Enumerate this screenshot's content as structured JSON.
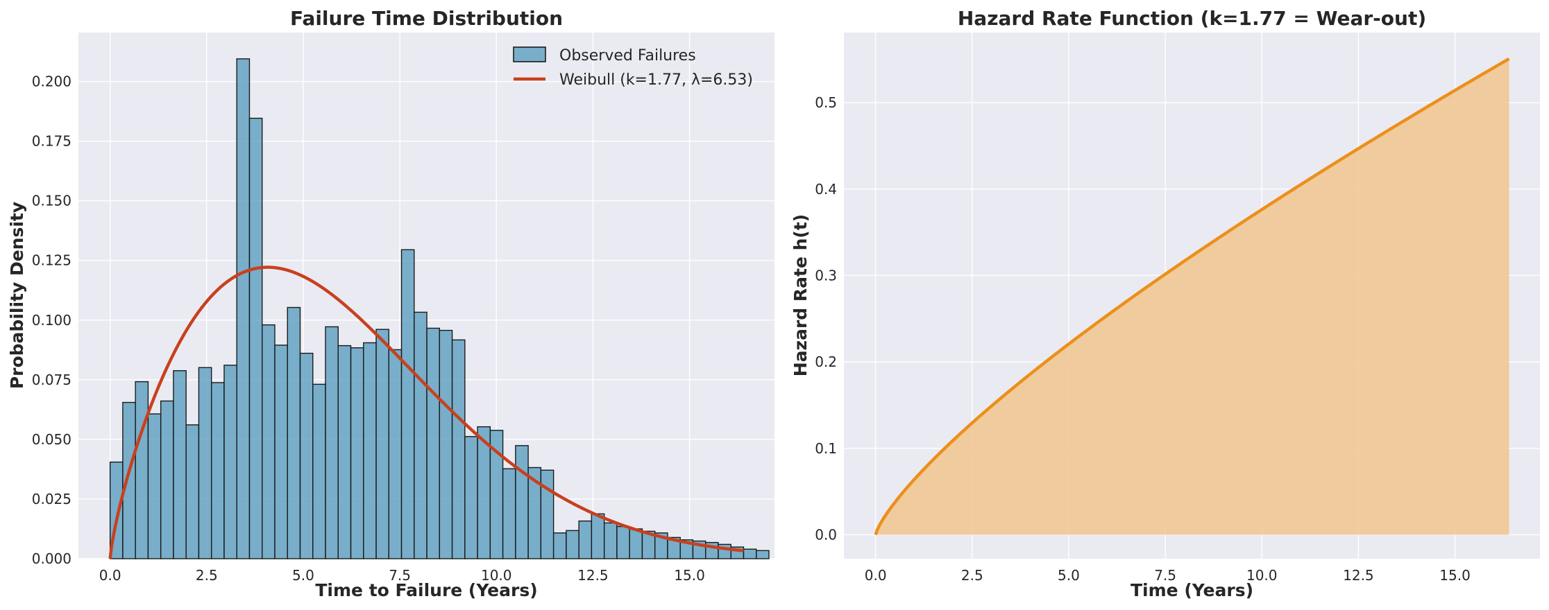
{
  "chart_data": [
    {
      "type": "bar",
      "title": "Failure Time Distribution",
      "xlabel": "Time to Failure (Years)",
      "ylabel": "Probability Density",
      "xlim": [
        -0.82,
        17.2
      ],
      "ylim": [
        0,
        0.2205
      ],
      "xticks": [
        0.0,
        2.5,
        5.0,
        7.5,
        10.0,
        12.5,
        15.0
      ],
      "xtick_labels": [
        "0.0",
        "2.5",
        "5.0",
        "7.5",
        "10.0",
        "12.5",
        "15.0"
      ],
      "yticks": [
        0.0,
        0.025,
        0.05,
        0.075,
        0.1,
        0.125,
        0.15,
        0.175,
        0.2
      ],
      "ytick_labels": [
        "0.000",
        "0.025",
        "0.050",
        "0.075",
        "0.100",
        "0.125",
        "0.150",
        "0.175",
        "0.200"
      ],
      "grid": true,
      "legend_position": "top-right",
      "histogram": {
        "name": "Observed Failures",
        "color": "#5b9fbf",
        "bin_start": 0.0,
        "bin_width": 0.328,
        "values": [
          0.0405,
          0.0655,
          0.0742,
          0.0607,
          0.0661,
          0.0788,
          0.0561,
          0.0801,
          0.0738,
          0.0811,
          0.2095,
          0.1846,
          0.098,
          0.0895,
          0.1053,
          0.0861,
          0.0731,
          0.0972,
          0.0893,
          0.0884,
          0.0905,
          0.0961,
          0.0876,
          0.1295,
          0.1033,
          0.0966,
          0.0957,
          0.0917,
          0.0512,
          0.0553,
          0.0538,
          0.0377,
          0.0474,
          0.0382,
          0.0371,
          0.0108,
          0.0118,
          0.0158,
          0.0188,
          0.015,
          0.0135,
          0.0125,
          0.0115,
          0.0108,
          0.0089,
          0.0079,
          0.0074,
          0.0068,
          0.006,
          0.0049,
          0.004,
          0.0034
        ]
      },
      "curve": {
        "name": "Weibull (k=1.77, λ=6.53)",
        "color": "#c8401e",
        "k": 1.77,
        "lambda": 6.53,
        "x_range": [
          0.0,
          16.4
        ]
      }
    },
    {
      "type": "area",
      "title": "Hazard Rate Function (k=1.77 = Wear-out)",
      "xlabel": "Time (Years)",
      "ylabel": "Hazard Rate h(t)",
      "xlim": [
        -0.82,
        17.2
      ],
      "ylim": [
        -0.0277,
        0.5811
      ],
      "xticks": [
        0.0,
        2.5,
        5.0,
        7.5,
        10.0,
        12.5,
        15.0
      ],
      "xtick_labels": [
        "0.0",
        "2.5",
        "5.0",
        "7.5",
        "10.0",
        "12.5",
        "15.0"
      ],
      "yticks": [
        0.0,
        0.1,
        0.2,
        0.3,
        0.4,
        0.5
      ],
      "ytick_labels": [
        "0.0",
        "0.1",
        "0.2",
        "0.3",
        "0.4",
        "0.5"
      ],
      "grid": true,
      "series": {
        "color": "#ec8f1a",
        "fill_color": "#f0c68e",
        "k": 1.77,
        "lambda": 6.53,
        "x_range": [
          0.0,
          16.4
        ]
      }
    }
  ]
}
